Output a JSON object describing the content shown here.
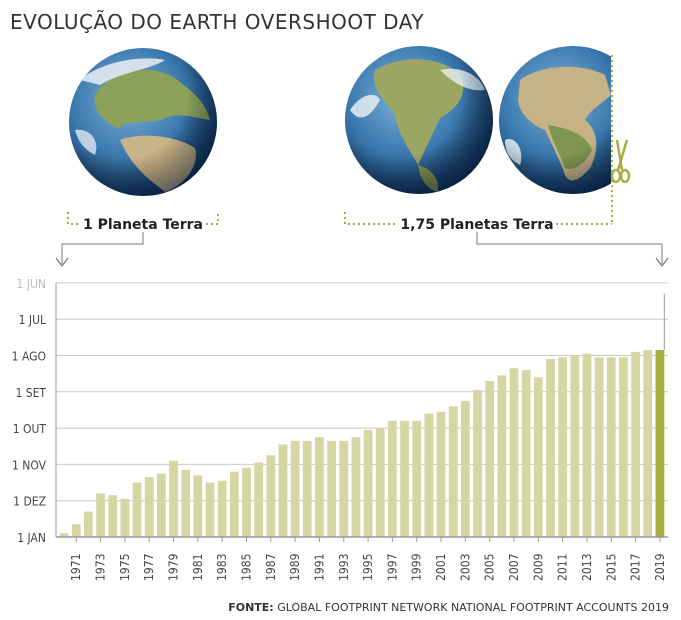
{
  "title": "EVOLUÇÃO DO EARTH OVERSHOOT DAY",
  "labels": {
    "one_planet": "1 Planeta Terra",
    "planets_175": "1,75 Planetas Terra"
  },
  "source": {
    "prefix": "FONTE:",
    "text": "GLOBAL FOOTPRINT NETWORK NATIONAL FOOTPRINT ACCOUNTS 2019"
  },
  "colors": {
    "bar": "#d6d6a4",
    "highlight": "#a7ad3e",
    "dotted": "#a7ad3e",
    "axis": "#9a9a9a",
    "grid": "#c8c8c8",
    "jan_label": "#a7ad3e"
  },
  "icons": [
    "earth-europe-africa-icon",
    "earth-americas-icon",
    "earth-africa-cut-icon",
    "scissors-icon",
    "arrow-down-icon"
  ],
  "chart_data": {
    "type": "bar",
    "title": "EVOLUÇÃO DO EARTH OVERSHOOT DAY",
    "xlabel": "",
    "ylabel": "",
    "y_tick_labels": [
      "1 JAN",
      "1 DEZ",
      "1 NOV",
      "1 OUT",
      "1 SET",
      "1 AGO",
      "1 JUL",
      "1 JUN"
    ],
    "y_tick_values": [
      0,
      1,
      2,
      3,
      4,
      5,
      6,
      7
    ],
    "y_unit": "months before 1 JAN",
    "ylim": [
      0,
      7
    ],
    "x_tick_labels": [
      "1971",
      "1973",
      "1975",
      "1977",
      "1979",
      "1981",
      "1983",
      "1985",
      "1987",
      "1989",
      "1991",
      "1993",
      "1995",
      "1997",
      "1999",
      "2001",
      "2003",
      "2005",
      "2007",
      "2009",
      "2011",
      "2013",
      "2015",
      "2017",
      "2019"
    ],
    "categories": [
      "1970",
      "1971",
      "1972",
      "1973",
      "1974",
      "1975",
      "1976",
      "1977",
      "1978",
      "1979",
      "1980",
      "1981",
      "1982",
      "1983",
      "1984",
      "1985",
      "1986",
      "1987",
      "1988",
      "1989",
      "1990",
      "1991",
      "1992",
      "1993",
      "1994",
      "1995",
      "1996",
      "1997",
      "1998",
      "1999",
      "2000",
      "2001",
      "2002",
      "2003",
      "2004",
      "2005",
      "2006",
      "2007",
      "2008",
      "2009",
      "2010",
      "2011",
      "2012",
      "2013",
      "2014",
      "2015",
      "2016",
      "2017",
      "2018",
      "2019"
    ],
    "values": [
      0.1,
      0.35,
      0.7,
      1.2,
      1.15,
      1.05,
      1.5,
      1.65,
      1.75,
      2.1,
      1.85,
      1.7,
      1.5,
      1.55,
      1.8,
      1.9,
      2.05,
      2.25,
      2.55,
      2.65,
      2.65,
      2.75,
      2.65,
      2.65,
      2.75,
      2.95,
      3.0,
      3.2,
      3.2,
      3.2,
      3.4,
      3.45,
      3.6,
      3.75,
      4.05,
      4.3,
      4.45,
      4.65,
      4.6,
      4.4,
      4.9,
      4.95,
      5.0,
      5.05,
      4.95,
      4.95,
      4.95,
      5.1,
      5.15,
      5.15
    ],
    "highlight_category": "2019",
    "grid": true
  }
}
